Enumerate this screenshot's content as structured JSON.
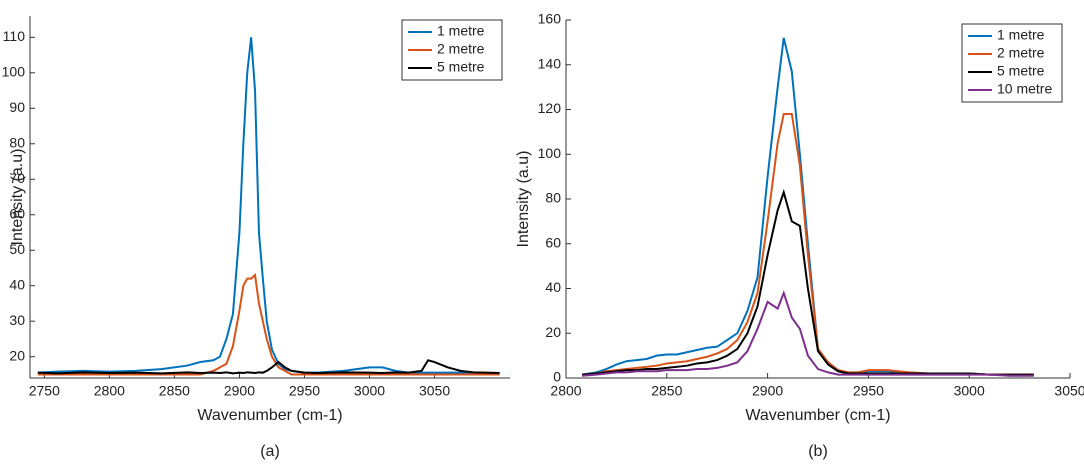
{
  "chart_data": [
    {
      "type": "line",
      "caption": "(a)",
      "xlabel": "Wavenumber (cm-1)",
      "ylabel": "Intensity (a.u)",
      "legend": "upper right",
      "xlim": [
        2739,
        3108
      ],
      "xticks": [
        2750,
        2800,
        2850,
        2900,
        2950,
        3000,
        3050
      ],
      "ylim": [
        14,
        116
      ],
      "yticks": [
        20,
        30,
        40,
        50,
        60,
        70,
        80,
        90,
        100,
        110
      ],
      "x": [
        2745,
        2760,
        2780,
        2800,
        2820,
        2840,
        2860,
        2870,
        2880,
        2885,
        2890,
        2895,
        2900,
        2903,
        2906,
        2909,
        2912,
        2915,
        2918,
        2921,
        2925,
        2930,
        2935,
        2940,
        2950,
        2960,
        2980,
        3000,
        3010,
        3020,
        3030,
        3040,
        3045,
        3050,
        3060,
        3070,
        3080,
        3090,
        3100
      ],
      "series": [
        {
          "name": "1 metre",
          "color": "#0072BD",
          "values": [
            15.5,
            15.8,
            16,
            15.8,
            16,
            16.5,
            17.5,
            18.5,
            19,
            20,
            25,
            32,
            55,
            80,
            100,
            110,
            95,
            55,
            42,
            30,
            22,
            18,
            16.5,
            16,
            15.5,
            15.5,
            16,
            17,
            17,
            16,
            15.5,
            15.5,
            15.5,
            15.5,
            15.5,
            15.5,
            15.2,
            15,
            15
          ]
        },
        {
          "name": "2 metre",
          "color": "#D95319",
          "values": [
            15,
            15,
            15,
            15,
            15,
            15,
            15,
            15,
            16,
            17,
            18,
            23,
            33,
            40,
            42,
            42,
            43,
            35,
            30,
            25,
            20,
            17,
            16,
            15,
            15,
            15,
            15,
            15,
            15,
            15,
            15,
            15,
            15,
            15,
            15,
            15,
            15,
            15,
            15
          ]
        },
        {
          "name": "5 metre",
          "color": "#000000",
          "values": [
            15.5,
            15.3,
            15.6,
            15.4,
            15.5,
            15.3,
            15.6,
            15.4,
            15.5,
            15.4,
            15.6,
            15.3,
            15.5,
            15.4,
            15.6,
            15.5,
            15.4,
            15.6,
            15.5,
            16,
            17,
            18.5,
            17,
            16,
            15.5,
            15.4,
            15.6,
            15.5,
            15.4,
            15.6,
            15.5,
            16,
            19,
            18.5,
            17,
            16,
            15.6,
            15.5,
            15.4
          ]
        }
      ]
    },
    {
      "type": "line",
      "caption": "(b)",
      "xlabel": "Wavenumber (cm-1)",
      "ylabel": "Intensity (a.u)",
      "legend": "upper right",
      "xlim": [
        2800,
        3050
      ],
      "xticks": [
        2800,
        2850,
        2900,
        2950,
        3000,
        3050
      ],
      "ylim": [
        0,
        160
      ],
      "yticks": [
        0,
        20,
        40,
        60,
        80,
        100,
        120,
        140,
        160
      ],
      "x": [
        2808,
        2815,
        2820,
        2825,
        2830,
        2835,
        2840,
        2845,
        2850,
        2855,
        2860,
        2865,
        2870,
        2875,
        2880,
        2885,
        2890,
        2895,
        2900,
        2905,
        2908,
        2912,
        2916,
        2920,
        2925,
        2930,
        2935,
        2940,
        2945,
        2950,
        2955,
        2960,
        2970,
        2980,
        2990,
        3000,
        3010,
        3020,
        3032
      ],
      "series": [
        {
          "name": "1 metre",
          "color": "#0072BD",
          "values": [
            1.5,
            2.5,
            4,
            6,
            7.5,
            8,
            8.5,
            10,
            10.5,
            10.5,
            11.5,
            12.5,
            13.5,
            14,
            17,
            20,
            30,
            45,
            90,
            130,
            152,
            137,
            100,
            60,
            13,
            7,
            3.5,
            2.5,
            2.5,
            3,
            3,
            3,
            2.5,
            2,
            2,
            2,
            1.5,
            1.5,
            1.5
          ]
        },
        {
          "name": "2 metre",
          "color": "#D95319",
          "values": [
            1.5,
            2,
            3,
            3.5,
            4,
            4.5,
            5,
            5.5,
            6.5,
            7,
            7.5,
            8.5,
            9.5,
            11,
            13,
            17,
            25,
            38,
            70,
            105,
            118,
            118,
            95,
            55,
            13,
            7,
            3.5,
            2.5,
            2.5,
            3.5,
            3.5,
            3.5,
            2.5,
            2,
            2,
            2,
            1.5,
            1.5,
            1.5
          ]
        },
        {
          "name": "5 metre",
          "color": "#000000",
          "values": [
            1.5,
            2,
            2.5,
            3,
            3.5,
            3.5,
            4,
            4,
            4.5,
            5,
            5.5,
            6.5,
            7,
            8,
            10,
            13,
            20,
            32,
            55,
            75,
            83,
            70,
            68,
            40,
            12,
            6,
            3,
            2,
            2,
            2,
            2,
            2,
            2,
            2,
            2,
            2,
            1.5,
            1.5,
            1.5
          ]
        },
        {
          "name": "10 metre",
          "color": "#7E2F8E",
          "values": [
            1,
            1.5,
            2,
            2.5,
            2.5,
            3,
            3,
            3,
            3.5,
            3.5,
            3.5,
            4,
            4,
            4.5,
            5.5,
            7,
            12,
            22,
            34,
            31,
            38,
            27,
            22,
            10,
            4,
            2.5,
            1.5,
            1.5,
            1.5,
            1.5,
            1.5,
            1.5,
            1.5,
            1.5,
            1.5,
            1.5,
            1.5,
            1,
            1
          ]
        }
      ]
    }
  ]
}
